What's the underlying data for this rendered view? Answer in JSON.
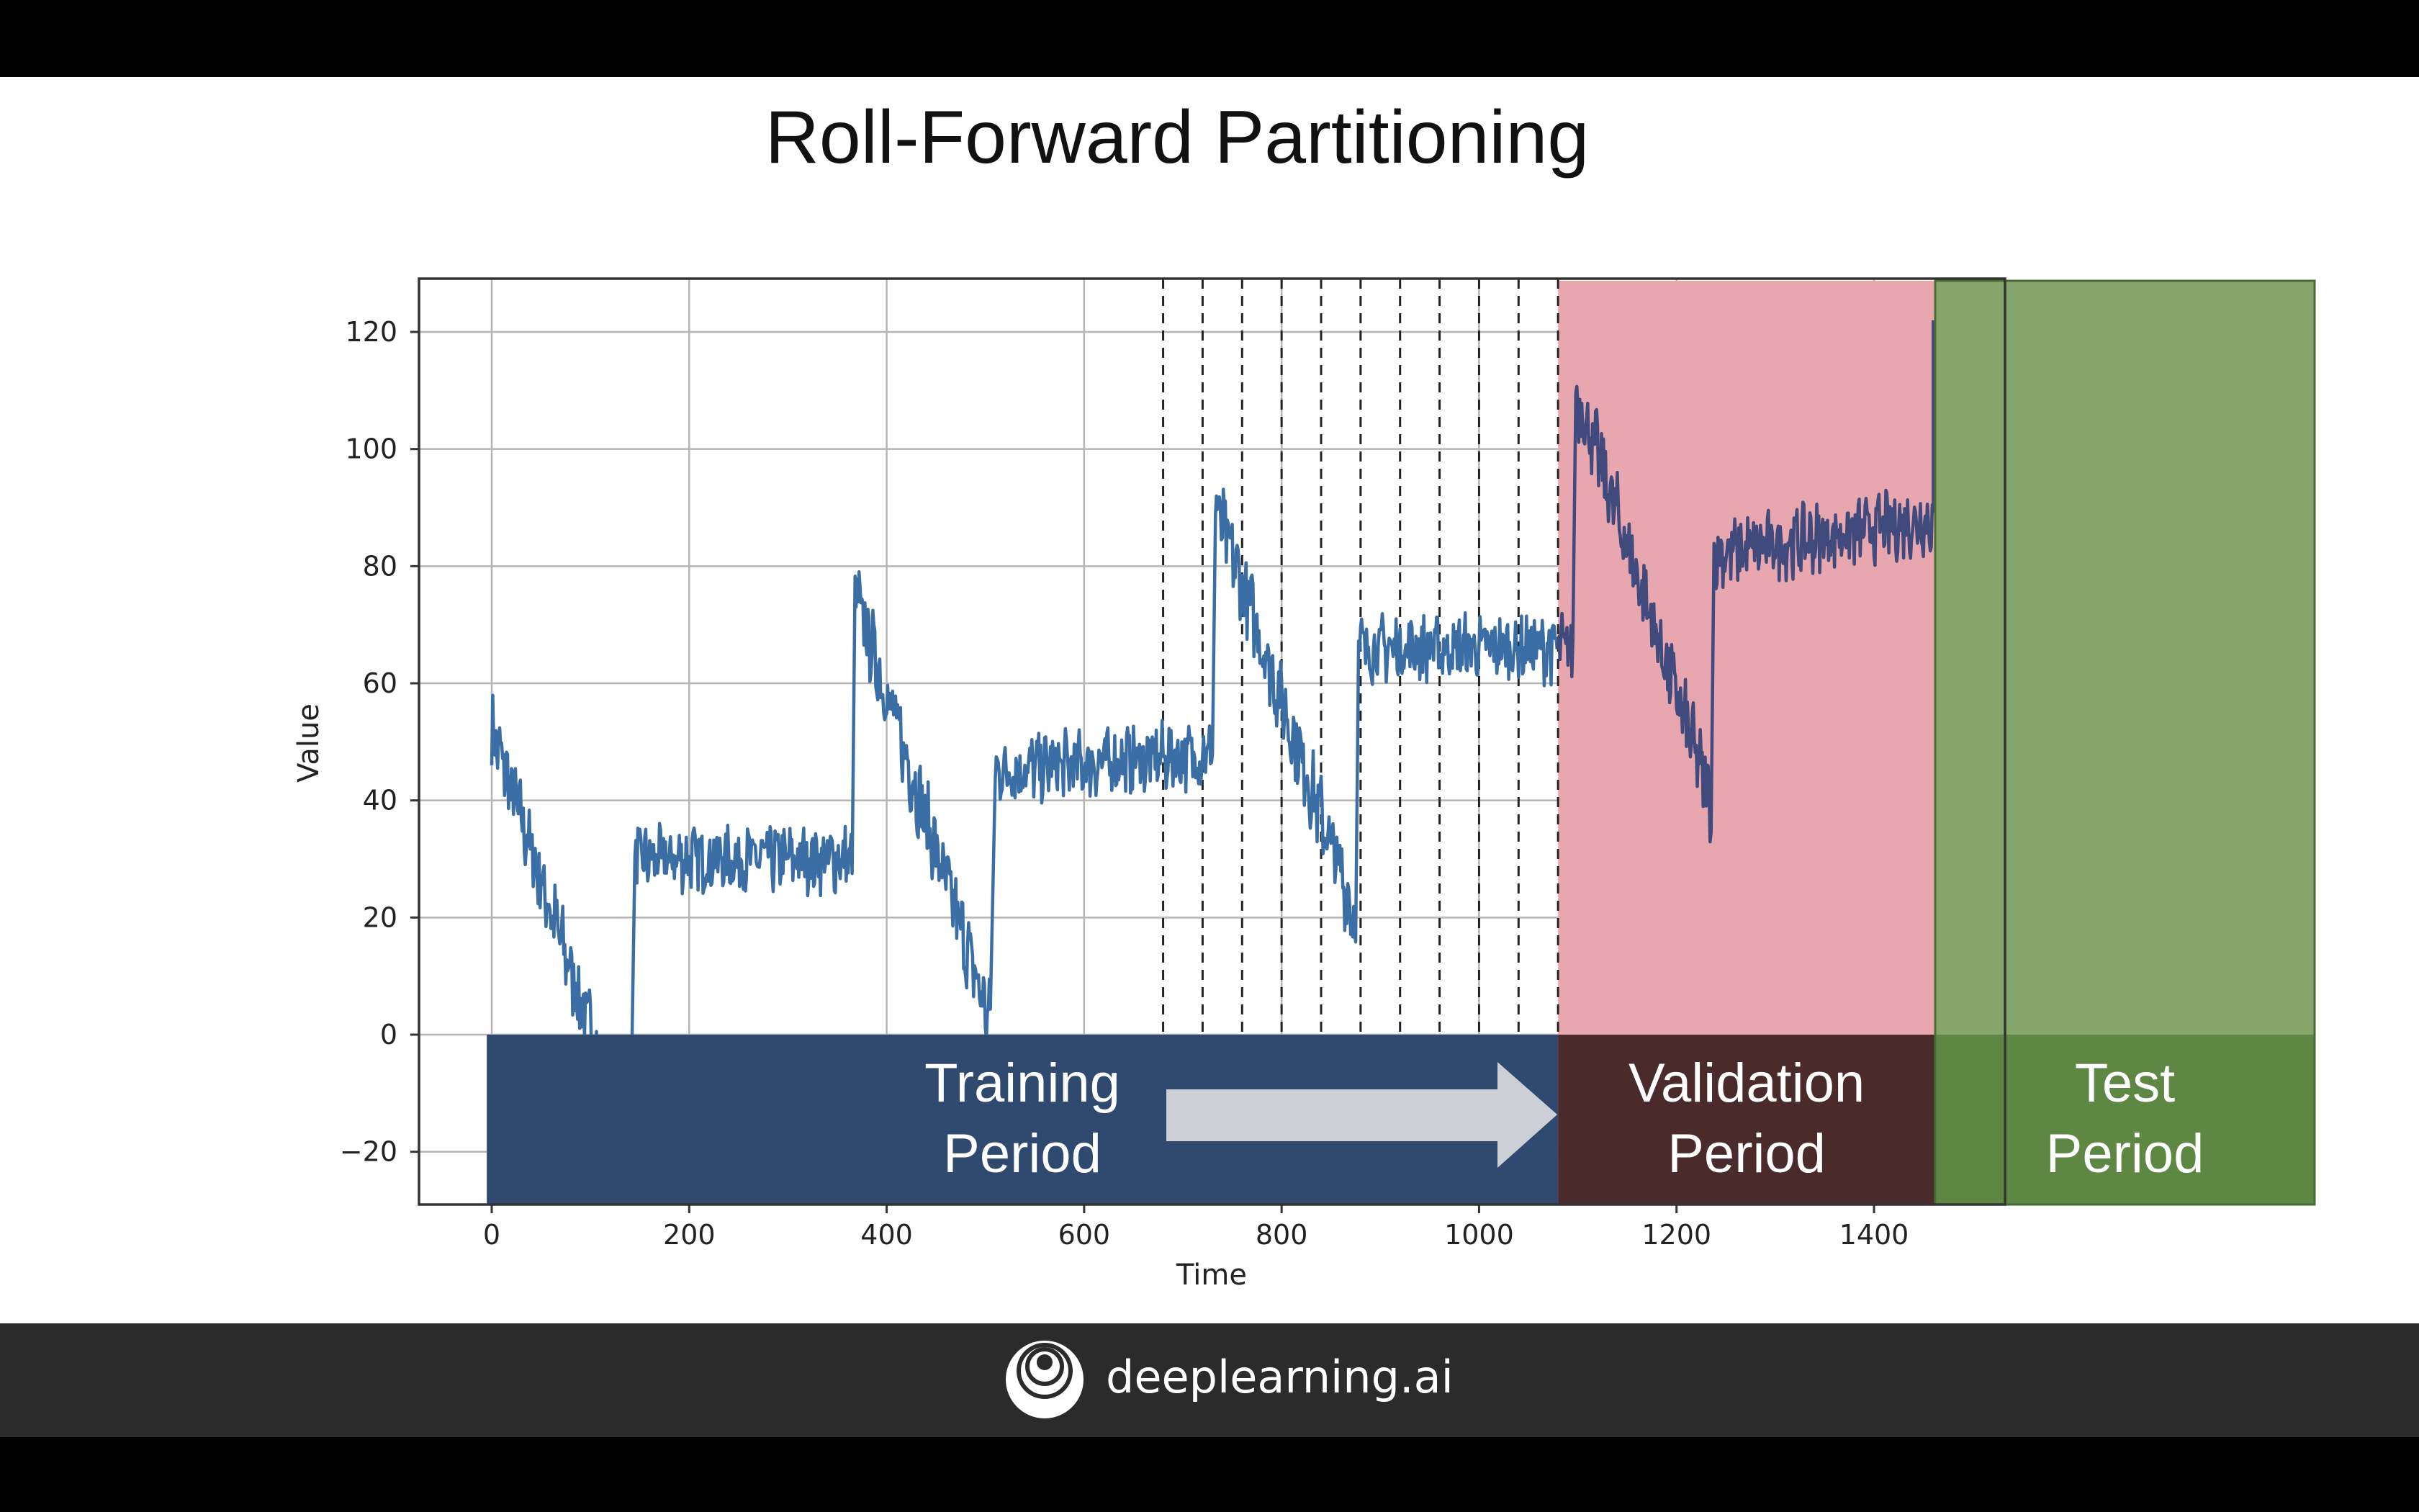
{
  "slide": {
    "title": "Roll-Forward Partitioning"
  },
  "footer": {
    "brand": "deeplearning.ai",
    "logo_icon": "concentric-circles-logo-icon"
  },
  "chart_data": {
    "type": "line",
    "xlabel": "Time",
    "ylabel": "Value",
    "xlim": [
      -75,
      1470
    ],
    "ylim": [
      -29,
      130
    ],
    "xticks": [
      0,
      200,
      400,
      600,
      800,
      1000,
      1200,
      1400
    ],
    "yticks": [
      -20,
      0,
      20,
      40,
      60,
      80,
      100,
      120
    ],
    "xtick_labels": [
      "0",
      "200",
      "400",
      "600",
      "800",
      "1000",
      "1200",
      "1400"
    ],
    "ytick_labels": [
      "−20",
      "0",
      "20",
      "40",
      "60",
      "80",
      "100",
      "120"
    ],
    "grid": true,
    "roll_forward_lines": [
      680,
      720,
      760,
      800,
      840,
      880,
      920,
      960,
      1000,
      1040,
      1080
    ],
    "segments": [
      {
        "x": [
          0,
          140
        ],
        "y": [
          52,
          -20
        ],
        "noise": 6
      },
      {
        "x": [
          145,
          365
        ],
        "y": [
          30,
          30
        ],
        "noise": 5
      },
      {
        "x": [
          368,
          505
        ],
        "y": [
          75,
          2
        ],
        "noise": 6
      },
      {
        "x": [
          510,
          730
        ],
        "y": [
          45,
          48
        ],
        "noise": 5
      },
      {
        "x": [
          733,
          875
        ],
        "y": [
          90,
          20
        ],
        "noise": 6
      },
      {
        "x": [
          878,
          1095
        ],
        "y": [
          66,
          66
        ],
        "noise": 5
      },
      {
        "x": [
          1098,
          1235
        ],
        "y": [
          110,
          40
        ],
        "noise": 6
      },
      {
        "x": [
          1238,
          1460
        ],
        "y": [
          82,
          88
        ],
        "noise": 5
      }
    ],
    "spike": {
      "x": 1460,
      "y": 122
    },
    "periods": [
      {
        "name": "training",
        "label_line1": "Training",
        "label_line2": "Period",
        "x_start": -5,
        "x_end": 1080,
        "band_color": "#2f4a6e",
        "fill_color": null
      },
      {
        "name": "validation",
        "label_line1": "Validation",
        "label_line2": "Period",
        "x_start": 1080,
        "x_end": 1462,
        "band_color": "#4a2a2a",
        "fill_color": "#e8a7ae"
      },
      {
        "name": "test",
        "label_line1": "Test",
        "label_line2": "Period",
        "x_start": 1462,
        "x_end": 1860,
        "band_color": "#5e8744",
        "fill_color": "#85a56a"
      }
    ],
    "colors": {
      "line_train": "#3a6ea5",
      "line_validation": "#414a7c",
      "arrow": "#ccd0d6"
    }
  }
}
